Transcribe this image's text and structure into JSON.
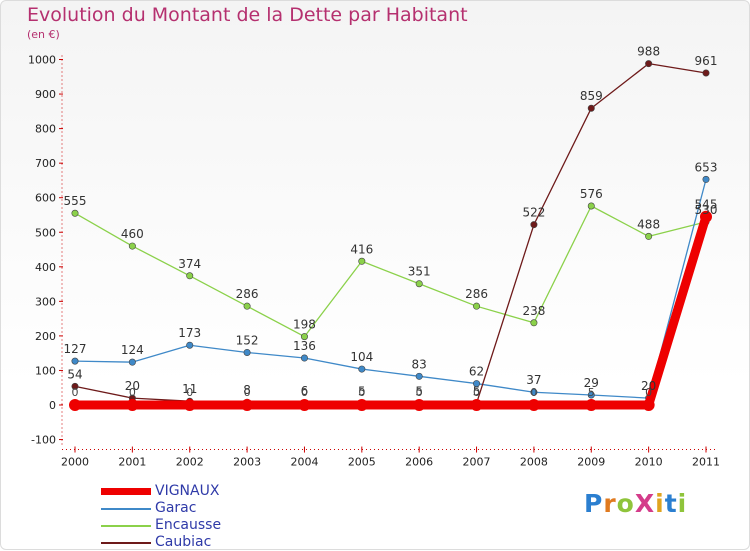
{
  "title": "Evolution du Montant de la Dette par Habitant",
  "subtitle": "(en €)",
  "logo": "ProXiti",
  "chart_data": {
    "type": "line",
    "x": [
      "2000",
      "2001",
      "2002",
      "2003",
      "2004",
      "2005",
      "2006",
      "2007",
      "2008",
      "2009",
      "2010",
      "2011"
    ],
    "ylim": [
      -100,
      1000
    ],
    "yticks": [
      -100,
      0,
      100,
      200,
      300,
      400,
      500,
      600,
      700,
      800,
      900,
      1000
    ],
    "grid": false,
    "legend_position": "bottom-left",
    "series": [
      {
        "name": "VIGNAUX",
        "color": "#ee0000",
        "values": [
          0,
          0,
          0,
          0,
          0,
          0,
          0,
          0,
          0,
          0,
          0,
          545
        ],
        "labels": [
          "",
          "",
          "",
          "",
          "",
          "",
          "",
          "",
          "",
          "",
          "",
          "545"
        ]
      },
      {
        "name": "Garac",
        "color": "#3f89c8",
        "values": [
          127,
          124,
          173,
          152,
          136,
          104,
          83,
          62,
          37,
          29,
          20,
          653
        ],
        "labels": [
          "127",
          "124",
          "173",
          "152",
          "136",
          "104",
          "83",
          "62",
          "37",
          "29",
          "20",
          "653"
        ]
      },
      {
        "name": "Encausse",
        "color": "#8bd14a",
        "values": [
          555,
          460,
          374,
          286,
          198,
          416,
          351,
          286,
          238,
          576,
          488,
          530
        ],
        "labels": [
          "555",
          "460",
          "374",
          "286",
          "198",
          "416",
          "351",
          "286",
          "238",
          "576",
          "488",
          "530"
        ]
      },
      {
        "name": "Caubiac",
        "color": "#6e1a1a",
        "values": [
          54,
          20,
          11,
          8,
          6,
          5,
          5,
          5,
          522,
          859,
          988,
          961
        ],
        "labels": [
          "54",
          "20",
          "11",
          "8",
          "6",
          "5",
          "5",
          "5",
          "522",
          "859",
          "988",
          "961"
        ]
      }
    ],
    "point_labels_extra": [
      "0",
      "0",
      "0",
      "0",
      "0",
      "0",
      "0",
      "0",
      "0",
      "5",
      "0"
    ]
  }
}
